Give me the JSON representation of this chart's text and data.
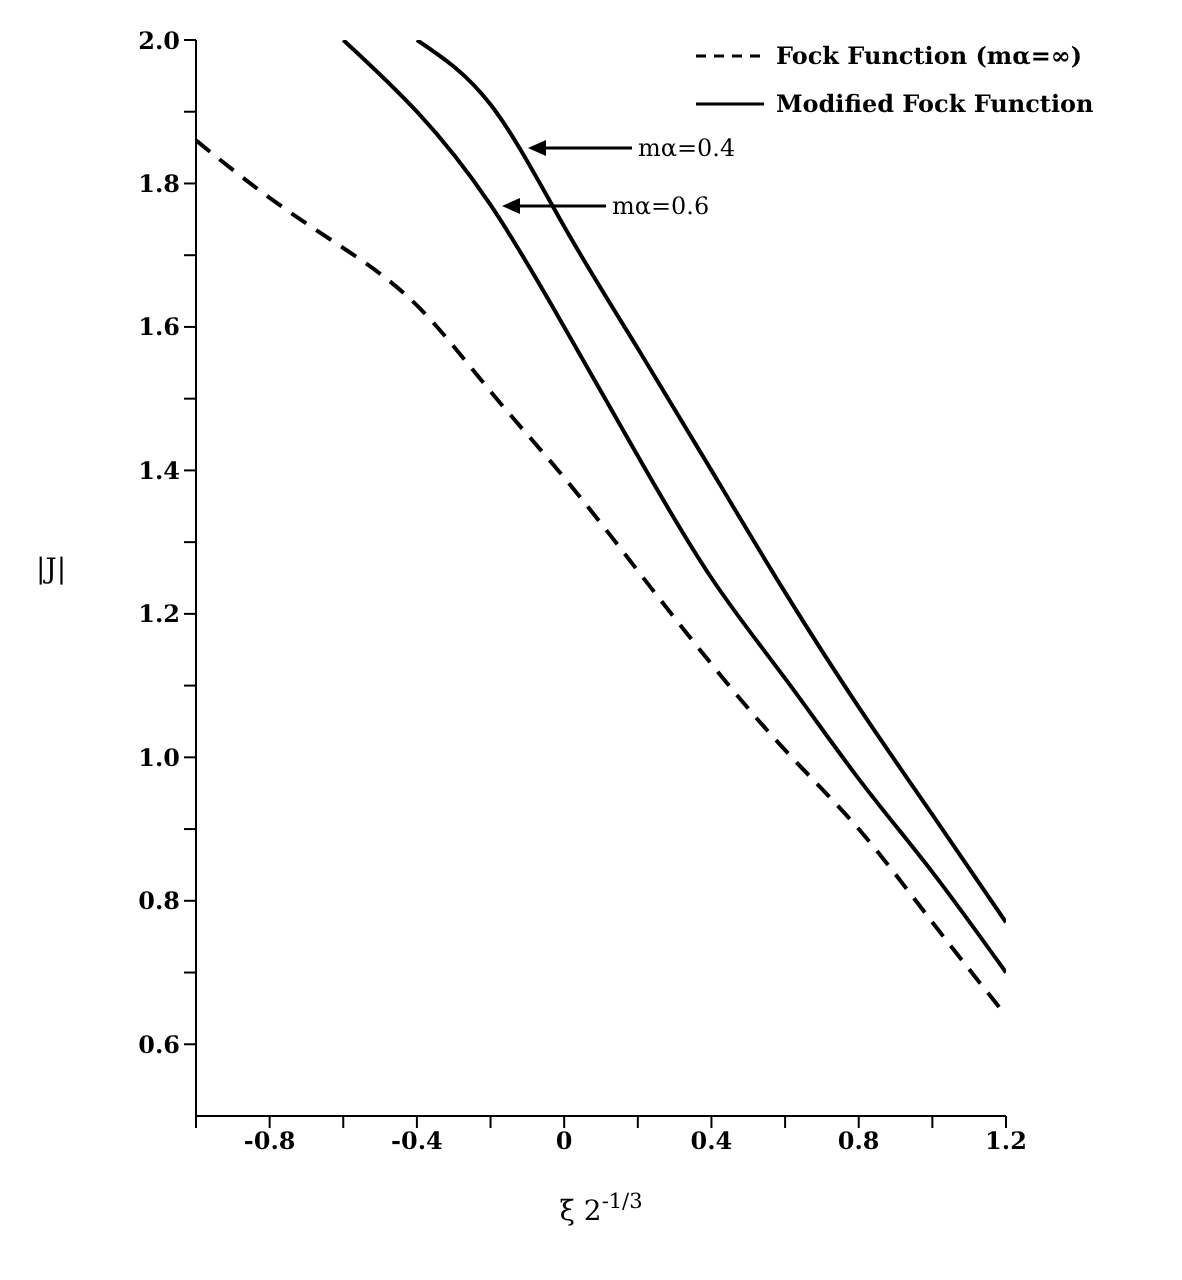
{
  "chart_data": {
    "type": "line",
    "xlabel": "ξ 2$^{-1/3}$",
    "ylabel": "|J|",
    "xlim": [
      -1,
      1.2
    ],
    "ylim": [
      0.5,
      2.0
    ],
    "xticks": [
      {
        "value": -1,
        "label": null
      },
      -0.8,
      {
        "value": -0.6,
        "label": null
      },
      -0.4,
      {
        "value": -0.2,
        "label": null
      },
      0,
      {
        "value": 0.2,
        "label": null
      },
      0.4,
      {
        "value": 0.6,
        "label": null
      },
      0.8,
      {
        "value": 1.0,
        "label": null
      },
      1.2
    ],
    "yticks": [
      0.6,
      {
        "value": 0.7,
        "label": null
      },
      0.8,
      {
        "value": 0.9,
        "label": null
      },
      {
        "value": 1,
        "label": "1.0"
      },
      {
        "value": 1.1,
        "label": null
      },
      1.2,
      {
        "value": 1.3,
        "label": null
      },
      1.4,
      {
        "value": 1.5,
        "label": null
      },
      1.6,
      {
        "value": 1.7,
        "label": null
      },
      1.8,
      {
        "value": 1.9,
        "label": null
      },
      {
        "value": 2,
        "label": "2.0"
      }
    ],
    "legend": "top right",
    "marker": "none",
    "series": [
      {
        "name": "Fock Function (mα=∞)",
        "color": "#000000",
        "line_style": "dashed",
        "x": [
          -1,
          -0.8,
          -0.6,
          -0.4,
          -0.2,
          0,
          0.2,
          0.4,
          0.6,
          0.8,
          1.0,
          1.2
        ],
        "values": [
          1.86,
          1.78,
          1.71,
          1.63,
          1.51,
          1.39,
          1.26,
          1.13,
          1.01,
          0.9,
          0.77,
          0.64
        ]
      },
      {
        "name": "Modified Fock Function",
        "color": "#000000",
        "line_style": "solid",
        "x": [
          -0.4,
          -0.2,
          0,
          0.2,
          0.4,
          0.6,
          0.8,
          1.0,
          1.2
        ],
        "values": [
          2.0,
          1.91,
          1.74,
          1.57,
          1.4,
          1.23,
          1.07,
          0.92,
          0.77
        ]
      },
      {
        "color": "#000000",
        "line_style": "solid",
        "x": [
          -0.6,
          -0.4,
          -0.2,
          0,
          0.2,
          0.4,
          0.6,
          0.8,
          1.0,
          1.2
        ],
        "values": [
          2.0,
          1.9,
          1.77,
          1.6,
          1.42,
          1.25,
          1.11,
          0.97,
          0.84,
          0.7
        ]
      }
    ],
    "annotations": [
      "mα=0.4",
      "mα=0.6"
    ]
  }
}
